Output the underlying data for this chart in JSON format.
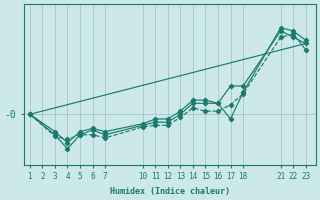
{
  "bg_color": "#cce8e8",
  "line_color": "#1a7a6e",
  "grid_color": "#9bbfbf",
  "xlabel": "Humidex (Indice chaleur)",
  "x_ticks": [
    1,
    2,
    3,
    4,
    5,
    6,
    7,
    10,
    11,
    12,
    13,
    14,
    15,
    16,
    17,
    18,
    21,
    22,
    23
  ],
  "series": [
    {
      "x": [
        1,
        3,
        4,
        5,
        6,
        7,
        10,
        11,
        12,
        13,
        14,
        15,
        16,
        17,
        18,
        21,
        22,
        23
      ],
      "y": [
        0.0,
        -0.55,
        -0.9,
        -0.55,
        -0.45,
        -0.55,
        -0.3,
        -0.15,
        -0.15,
        0.1,
        0.45,
        0.45,
        0.35,
        0.9,
        0.9,
        2.65,
        2.45,
        2.25
      ],
      "style": "-",
      "marker": "D",
      "markersize": 2.2
    },
    {
      "x": [
        1,
        3,
        4,
        5,
        6,
        7,
        10,
        11,
        12,
        13,
        14,
        15,
        16,
        17,
        18,
        21,
        22,
        23
      ],
      "y": [
        0.0,
        -0.65,
        -1.1,
        -0.65,
        -0.5,
        -0.65,
        -0.35,
        -0.25,
        -0.25,
        0.0,
        0.35,
        0.35,
        0.35,
        -0.15,
        0.7,
        2.75,
        2.65,
        2.35
      ],
      "style": "-",
      "marker": "D",
      "markersize": 2.2
    },
    {
      "x": [
        1,
        3,
        4,
        5,
        6,
        7,
        10,
        11,
        12,
        13,
        14,
        15,
        16,
        17,
        18,
        21,
        22,
        23
      ],
      "y": [
        0.0,
        -0.7,
        -0.8,
        -0.65,
        -0.65,
        -0.75,
        -0.4,
        -0.35,
        -0.35,
        -0.1,
        0.2,
        0.1,
        0.1,
        0.3,
        0.65,
        2.45,
        2.55,
        2.05
      ],
      "style": "--",
      "marker": "D",
      "markersize": 2.2
    },
    {
      "x": [
        1,
        23
      ],
      "y": [
        0.0,
        2.25
      ],
      "style": "-",
      "marker": null,
      "markersize": 0
    }
  ],
  "ylim": [
    -1.6,
    3.5
  ],
  "xlim": [
    0.5,
    23.8
  ],
  "ytick_pos": 0.0,
  "ytick_label": "-0",
  "xlabel_fontsize": 6.0,
  "tick_fontsize": 5.5
}
